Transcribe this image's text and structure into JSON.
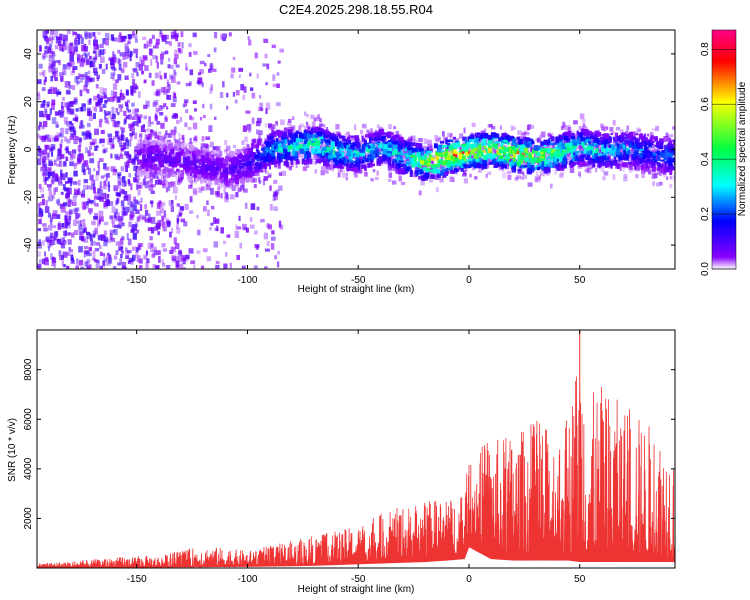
{
  "title": "C2E4.2025.298.18.55.R04",
  "chart_data": [
    {
      "type": "heatmap",
      "id": "spectrogram",
      "xlabel": "Height of straight line (km)",
      "ylabel": "Frequency (Hz)",
      "xlim": [
        -195,
        93
      ],
      "ylim": [
        -50,
        50
      ],
      "x_ticks": [
        -150,
        -100,
        -50,
        0,
        50
      ],
      "y_ticks": [
        -40,
        -20,
        0,
        20,
        40
      ],
      "signal_trace": {
        "x": [
          -150,
          -140,
          -130,
          -120,
          -110,
          -100,
          -90,
          -80,
          -70,
          -60,
          -50,
          -40,
          -30,
          -20,
          -10,
          0,
          10,
          20,
          30,
          40,
          50,
          60,
          70,
          80,
          90
        ],
        "freq": [
          -2,
          -3,
          -4,
          -6,
          -8,
          -5,
          1,
          2,
          3,
          0,
          -1,
          2,
          -2,
          -5,
          -2,
          0,
          1,
          -1,
          -2,
          0,
          2,
          0,
          1,
          0,
          -2
        ],
        "amplitude": [
          0.1,
          0.1,
          0.1,
          0.1,
          0.1,
          0.15,
          0.3,
          0.4,
          0.45,
          0.4,
          0.35,
          0.35,
          0.4,
          0.6,
          0.75,
          0.7,
          0.6,
          0.7,
          0.6,
          0.5,
          0.4,
          0.35,
          0.3,
          0.25,
          0.25
        ]
      }
    },
    {
      "type": "colorbar",
      "id": "amplitude-scale",
      "label": "Normalized spectral amplitude",
      "range": [
        0,
        0.87
      ],
      "ticks": [
        0.0,
        0.2,
        0.4,
        0.6,
        0.8
      ],
      "tick_labels": [
        "0.0",
        "0.2",
        "0.4",
        "0.6",
        "0.8"
      ],
      "colors": [
        "#ffffff",
        "#8800ff",
        "#0000ff",
        "#00ffff",
        "#00ff44",
        "#ffff00",
        "#ff0000",
        "#ff0088"
      ]
    },
    {
      "type": "line",
      "id": "snr-trace",
      "xlabel": "Height of straight line (km)",
      "ylabel": "SNR (10 * v/v)",
      "xlim": [
        -195,
        93
      ],
      "ylim": [
        0,
        9600
      ],
      "x_ticks": [
        -150,
        -100,
        -50,
        0,
        50
      ],
      "y_ticks": [
        2000,
        4000,
        6000,
        8000
      ],
      "series": [
        {
          "name": "SNR",
          "color": "#ee3333",
          "x": [
            -195,
            -175,
            -150,
            -140,
            -130,
            -120,
            -110,
            -100,
            -90,
            -80,
            -70,
            -60,
            -50,
            -40,
            -30,
            -20,
            -10,
            -2,
            0,
            10,
            20,
            30,
            40,
            45,
            50,
            55,
            60,
            70,
            80,
            90,
            93
          ],
          "upper": [
            200,
            300,
            500,
            500,
            700,
            900,
            800,
            700,
            900,
            1100,
            1300,
            1500,
            1700,
            2200,
            2500,
            2700,
            2800,
            3000,
            4700,
            5200,
            5400,
            6000,
            5500,
            6200,
            9600,
            7000,
            7400,
            6600,
            6000,
            5200,
            5000
          ],
          "lower": [
            30,
            30,
            30,
            40,
            50,
            60,
            70,
            80,
            100,
            120,
            150,
            200,
            250,
            300,
            350,
            400,
            500,
            600,
            1400,
            600,
            500,
            500,
            500,
            500,
            400,
            400,
            400,
            400,
            400,
            400,
            400
          ]
        }
      ]
    }
  ]
}
